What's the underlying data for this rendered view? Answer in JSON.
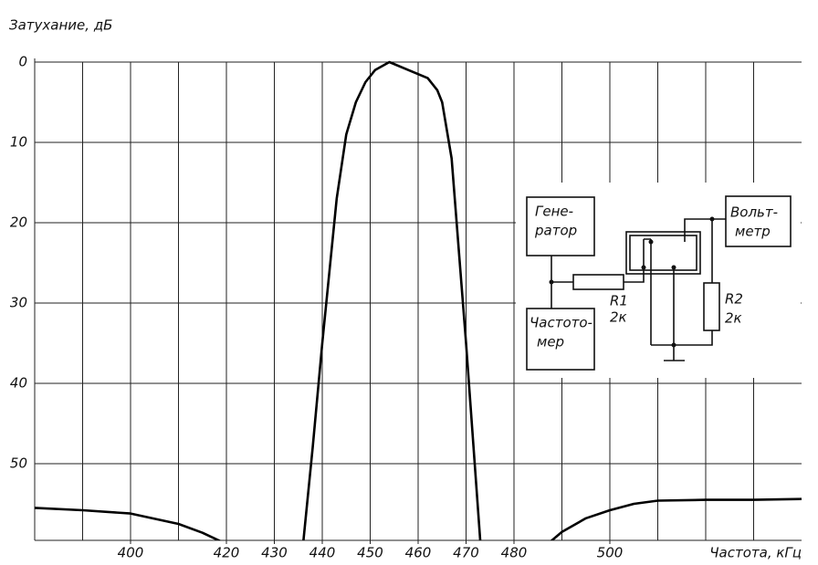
{
  "chart_data": {
    "type": "line",
    "y_label": "Затухание, дБ",
    "x_label": "Частота, кГц",
    "xlim": [
      380,
      540
    ],
    "ylim": [
      0,
      60
    ],
    "y_inverted": true,
    "xticks": [
      400,
      420,
      430,
      440,
      450,
      460,
      470,
      480,
      500
    ],
    "xgrid_ticks": [
      390,
      400,
      410,
      420,
      430,
      440,
      450,
      460,
      470,
      480,
      490,
      500,
      510,
      520,
      530
    ],
    "yticks": [
      0,
      10,
      20,
      30,
      40,
      50
    ],
    "grid": true,
    "series": [
      {
        "color": "#000000",
        "x": [
          380,
          390,
          400,
          410,
          415,
          420,
          428,
          436,
          438,
          440,
          443,
          445,
          447,
          449,
          451,
          454,
          458,
          462,
          464,
          465,
          467,
          470,
          473,
          480,
          487,
          490,
          495,
          500,
          505,
          510,
          520,
          530,
          540
        ],
        "values": [
          55.5,
          55.8,
          56.2,
          57.5,
          58.6,
          60,
          null,
          60,
          48,
          35,
          17,
          9,
          5,
          2.5,
          1,
          0,
          1,
          2,
          3.5,
          5,
          12,
          35,
          60,
          null,
          60,
          58.5,
          56.8,
          55.8,
          55,
          54.6,
          54.5,
          54.5,
          54.4
        ]
      }
    ],
    "inset": {
      "generator": [
        "Гене-",
        "ратор"
      ],
      "frequency_meter": [
        "Частото-",
        "мер"
      ],
      "voltmeter": [
        "Вольт-",
        "метр"
      ],
      "r1": [
        "R1",
        "2к"
      ],
      "r2": [
        "R2",
        "2к"
      ]
    }
  }
}
